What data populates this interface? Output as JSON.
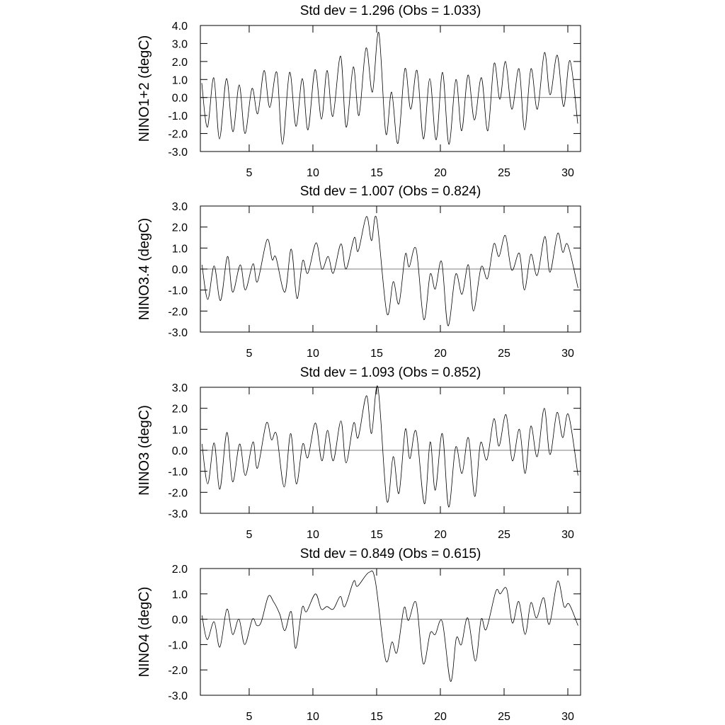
{
  "chart_data": [
    {
      "type": "line",
      "title": "Std dev = 1.296 (Obs = 1.033)",
      "y_label": "NINO1+2 (degC)",
      "xlim": [
        1.17,
        31
      ],
      "xticks": [
        5,
        10,
        15,
        20,
        25,
        30
      ],
      "ylim": [
        -3,
        4
      ],
      "yticks": [
        {
          "value": -3,
          "label": "-3.0"
        },
        {
          "value": -2,
          "label": "-2.0"
        },
        {
          "value": -1,
          "label": "-1.0"
        },
        {
          "value": 0,
          "label": "0.0"
        },
        {
          "value": 1,
          "label": "1.0"
        },
        {
          "value": 2,
          "label": "2.0"
        },
        {
          "value": 3,
          "label": "3.0"
        },
        {
          "value": 4,
          "label": "4.0"
        }
      ],
      "color": "#000000",
      "x": [
        1.28,
        1.72,
        2.22,
        2.67,
        3.22,
        3.72,
        4.22,
        4.67,
        5.22,
        5.67,
        6.17,
        6.61,
        7.17,
        7.61,
        8.17,
        8.67,
        9.17,
        9.61,
        10.17,
        10.67,
        11.11,
        11.56,
        12.17,
        12.61,
        13.17,
        13.61,
        14.17,
        14.67,
        15.17,
        15.72,
        16.17,
        16.67,
        17.22,
        17.67,
        18.17,
        18.67,
        19.17,
        19.67,
        20.17,
        20.67,
        21.22,
        21.67,
        22.17,
        22.67,
        23.22,
        23.72,
        24.22,
        24.67,
        25.11,
        25.61,
        26.17,
        26.61,
        27.11,
        27.61,
        28.17,
        28.61,
        29.17,
        29.67,
        30.17,
        30.78
      ],
      "values": [
        0.8,
        -1.65,
        1.1,
        -2.3,
        1.05,
        -1.9,
        0.7,
        -2.0,
        0.5,
        -0.9,
        1.5,
        -0.55,
        1.4,
        -2.6,
        1.4,
        -1.6,
        1.05,
        -1.8,
        1.55,
        -1.2,
        1.5,
        -1.05,
        2.3,
        -1.65,
        1.7,
        -1.0,
        2.75,
        0.3,
        3.6,
        -2.0,
        0.3,
        -2.55,
        1.6,
        -0.65,
        1.5,
        -2.3,
        1.05,
        -2.35,
        1.4,
        -2.6,
        1.0,
        -1.85,
        1.25,
        -1.25,
        1.1,
        -1.85,
        1.9,
        -0.1,
        2.0,
        -0.65,
        1.6,
        -1.8,
        1.6,
        -0.65,
        2.5,
        0.15,
        2.35,
        -0.5,
        2.05,
        -1.45
      ]
    },
    {
      "type": "line",
      "title": "Std dev = 1.007 (Obs = 0.824)",
      "y_label": "NINO3.4 (degC)",
      "xlim": [
        1.17,
        31
      ],
      "xticks": [
        5,
        10,
        15,
        20,
        25,
        30
      ],
      "ylim": [
        -3,
        3
      ],
      "yticks": [
        {
          "value": -3,
          "label": "-3.0"
        },
        {
          "value": -2,
          "label": "-2.0"
        },
        {
          "value": -1,
          "label": "-1.0"
        },
        {
          "value": 0,
          "label": "0.0"
        },
        {
          "value": 1,
          "label": "1.0"
        },
        {
          "value": 2,
          "label": "2.0"
        },
        {
          "value": 3,
          "label": "3.0"
        }
      ],
      "color": "#000000",
      "x": [
        1.3,
        1.75,
        2.25,
        2.75,
        3.3,
        3.7,
        4.3,
        4.7,
        5.3,
        5.65,
        6.4,
        6.8,
        7.1,
        7.8,
        8.3,
        8.75,
        9.2,
        9.6,
        10.25,
        10.7,
        11.2,
        11.6,
        12.2,
        12.6,
        13.25,
        13.55,
        14.2,
        14.6,
        15.0,
        15.8,
        16.3,
        16.75,
        17.25,
        17.55,
        18.1,
        18.7,
        19.2,
        19.6,
        20.1,
        20.6,
        21.2,
        21.7,
        22.2,
        22.6,
        23.2,
        23.7,
        24.2,
        24.6,
        25.1,
        25.6,
        26.2,
        26.6,
        27.1,
        27.6,
        28.2,
        28.6,
        29.2,
        29.6,
        30.0,
        30.8
      ],
      "values": [
        0.2,
        -1.45,
        0.15,
        -1.5,
        0.6,
        -1.1,
        0.2,
        -1.0,
        0.25,
        -0.6,
        1.4,
        0.45,
        0.55,
        -1.1,
        0.95,
        -1.4,
        0.4,
        -0.2,
        1.25,
        0.0,
        0.6,
        -0.2,
        1.2,
        0.0,
        1.5,
        0.85,
        2.5,
        1.35,
        2.4,
        -2.1,
        -0.6,
        -1.65,
        0.7,
        0.1,
        0.95,
        -2.4,
        -0.25,
        -0.95,
        0.35,
        -2.7,
        -0.25,
        -1.2,
        0.2,
        -2.0,
        0.1,
        -0.45,
        1.2,
        0.6,
        1.6,
        -0.05,
        0.75,
        -1.0,
        0.7,
        -0.3,
        1.55,
        -0.15,
        1.7,
        0.8,
        1.15,
        -0.9
      ]
    },
    {
      "type": "line",
      "title": "Std dev = 1.093 (Obs = 0.852)",
      "y_label": "NINO3 (degC)",
      "xlim": [
        1.17,
        31
      ],
      "xticks": [
        5,
        10,
        15,
        20,
        25,
        30
      ],
      "ylim": [
        -3,
        3
      ],
      "yticks": [
        {
          "value": -3,
          "label": "-3.0"
        },
        {
          "value": -2,
          "label": "-2.0"
        },
        {
          "value": -1,
          "label": "-1.0"
        },
        {
          "value": 0,
          "label": "0.0"
        },
        {
          "value": 1,
          "label": "1.0"
        },
        {
          "value": 2,
          "label": "2.0"
        },
        {
          "value": 3,
          "label": "3.0"
        }
      ],
      "color": "#000000",
      "x": [
        1.3,
        1.75,
        2.25,
        2.7,
        3.25,
        3.7,
        4.25,
        4.7,
        5.3,
        5.65,
        6.35,
        6.75,
        7.15,
        7.75,
        8.25,
        8.7,
        9.2,
        9.6,
        10.2,
        10.7,
        11.15,
        11.6,
        12.2,
        12.6,
        13.2,
        13.55,
        14.2,
        14.6,
        15.1,
        15.8,
        16.3,
        16.75,
        17.25,
        17.6,
        18.1,
        18.75,
        19.2,
        19.6,
        20.15,
        20.65,
        21.2,
        21.7,
        22.2,
        22.7,
        23.15,
        23.65,
        24.2,
        24.6,
        25.15,
        25.65,
        26.2,
        26.65,
        27.1,
        27.6,
        28.15,
        28.6,
        29.15,
        29.6,
        30.05,
        30.8
      ],
      "values": [
        0.3,
        -1.6,
        0.35,
        -1.85,
        0.85,
        -1.5,
        0.3,
        -1.2,
        0.4,
        -0.85,
        1.3,
        0.5,
        0.75,
        -1.75,
        0.8,
        -1.6,
        0.3,
        -0.35,
        1.3,
        -0.5,
        0.95,
        -0.5,
        1.4,
        -0.6,
        1.3,
        0.6,
        2.6,
        0.8,
        3.0,
        -2.4,
        -0.3,
        -2.05,
        1.0,
        -0.4,
        0.9,
        -2.55,
        0.4,
        -1.9,
        0.8,
        -2.7,
        0.15,
        -1.1,
        0.6,
        -2.2,
        0.35,
        -0.45,
        1.5,
        0.2,
        1.7,
        -0.5,
        1.0,
        -1.1,
        1.15,
        -0.3,
        2.0,
        -0.2,
        1.8,
        0.6,
        1.7,
        -1.2
      ]
    },
    {
      "type": "line",
      "title": "Std dev = 0.849 (Obs = 0.615)",
      "y_label": "NINO4 (degC)",
      "xlim": [
        1.17,
        31
      ],
      "xticks": [
        5,
        10,
        15,
        20,
        25,
        30
      ],
      "ylim": [
        -3,
        2
      ],
      "yticks": [
        {
          "value": -3,
          "label": "-3.0"
        },
        {
          "value": -2,
          "label": "-2.0"
        },
        {
          "value": -1,
          "label": "-1.0"
        },
        {
          "value": 0,
          "label": "0.0"
        },
        {
          "value": 1,
          "label": "1.0"
        },
        {
          "value": 2,
          "label": "2.0"
        }
      ],
      "color": "#000000",
      "x": [
        1.3,
        1.7,
        2.25,
        2.7,
        3.25,
        3.7,
        4.2,
        4.65,
        5.25,
        5.6,
        5.95,
        6.5,
        6.9,
        7.4,
        7.8,
        8.3,
        8.65,
        9.15,
        9.5,
        10.2,
        10.65,
        11.1,
        11.6,
        12.15,
        12.5,
        13.2,
        13.5,
        14.4,
        14.9,
        15.7,
        16.2,
        16.6,
        17.15,
        17.5,
        18.1,
        18.65,
        19.2,
        19.6,
        20.15,
        20.8,
        21.25,
        21.65,
        22.15,
        22.75,
        23.2,
        23.6,
        24.35,
        24.7,
        25.2,
        25.65,
        26.15,
        26.65,
        27.1,
        27.55,
        28.1,
        28.55,
        29.2,
        29.7,
        30.1,
        30.8
      ],
      "values": [
        0.15,
        -0.8,
        -0.1,
        -1.1,
        0.4,
        -0.6,
        0.0,
        -1.0,
        0.0,
        -0.25,
        -0.1,
        0.9,
        0.7,
        0.2,
        -0.45,
        0.3,
        -1.15,
        0.45,
        0.3,
        1.0,
        0.4,
        0.5,
        0.4,
        0.9,
        0.5,
        1.5,
        1.3,
        1.85,
        1.5,
        -1.6,
        -0.9,
        -1.3,
        0.45,
        -0.05,
        0.65,
        -1.75,
        -0.55,
        -0.6,
        -0.1,
        -2.45,
        -0.75,
        -1.0,
        0.05,
        -1.65,
        0.0,
        -0.4,
        1.1,
        1.0,
        1.2,
        -0.15,
        0.7,
        -0.6,
        0.65,
        0.05,
        0.85,
        -0.2,
        1.5,
        0.5,
        0.6,
        -0.25
      ]
    }
  ]
}
